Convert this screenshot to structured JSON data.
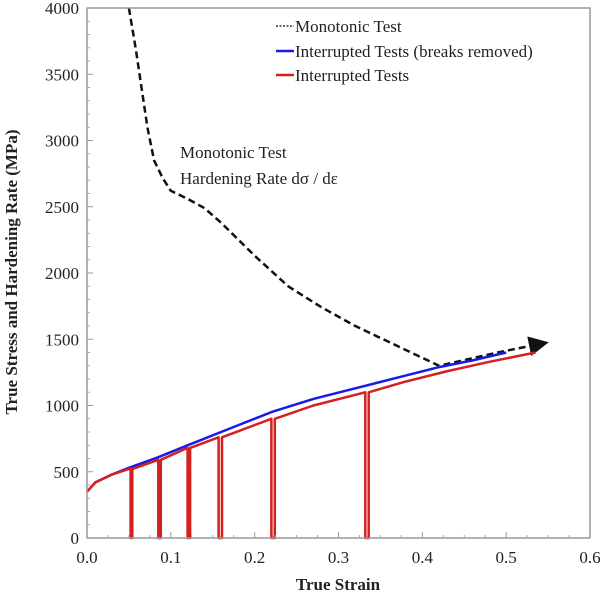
{
  "chart_data": {
    "type": "line",
    "xlabel": "True Strain",
    "ylabel": "True Stress and Hardening Rate (MPa)",
    "xlim": [
      0,
      0.6
    ],
    "ylim": [
      0,
      4000
    ],
    "xticks": [
      "0.0",
      "0.1",
      "0.2",
      "0.3",
      "0.4",
      "0.5",
      "0.6"
    ],
    "yticks": [
      "0",
      "500",
      "1000",
      "1500",
      "2000",
      "2500",
      "3000",
      "3500",
      "4000"
    ],
    "grid": false,
    "legend_position": "top-right",
    "annotation": [
      "Monotonic Test",
      "Hardening Rate dσ / dε"
    ],
    "series": [
      {
        "name": "Monotonic Test",
        "color": "#111111",
        "style": "dashed",
        "x": [
          0.05,
          0.058,
          0.065,
          0.072,
          0.08,
          0.09,
          0.1,
          0.12,
          0.14,
          0.16,
          0.2,
          0.24,
          0.28,
          0.32,
          0.37,
          0.42,
          0.49,
          0.545
        ],
        "y": [
          4000,
          3700,
          3400,
          3100,
          2850,
          2720,
          2620,
          2560,
          2490,
          2380,
          2130,
          1900,
          1740,
          1600,
          1450,
          1300,
          1400,
          1470
        ]
      },
      {
        "name": "Interrupted Tests (breaks removed)",
        "color": "#1a1ae6",
        "style": "solid",
        "x": [
          0,
          0.01,
          0.03,
          0.05,
          0.085,
          0.12,
          0.16,
          0.22,
          0.27,
          0.32,
          0.37,
          0.42,
          0.46,
          0.5
        ],
        "y": [
          350,
          420,
          480,
          530,
          610,
          700,
          800,
          950,
          1050,
          1130,
          1210,
          1290,
          1340,
          1400
        ]
      },
      {
        "name": "Interrupted Tests",
        "color": "#d42020",
        "style": "solid",
        "x": [
          0,
          0.01,
          0.03,
          0.052,
          0.052,
          0.054,
          0.054,
          0.085,
          0.085,
          0.088,
          0.088,
          0.12,
          0.12,
          0.123,
          0.123,
          0.157,
          0.157,
          0.161,
          0.161,
          0.22,
          0.22,
          0.224,
          0.224,
          0.27,
          0.332,
          0.332,
          0.336,
          0.336,
          0.38,
          0.43,
          0.48,
          0.535
        ],
        "y": [
          350,
          420,
          480,
          525,
          0,
          0,
          520,
          590,
          0,
          0,
          590,
          680,
          0,
          0,
          680,
          760,
          0,
          0,
          760,
          900,
          0,
          0,
          900,
          1000,
          1100,
          0,
          0,
          1100,
          1180,
          1260,
          1330,
          1400
        ]
      }
    ]
  }
}
